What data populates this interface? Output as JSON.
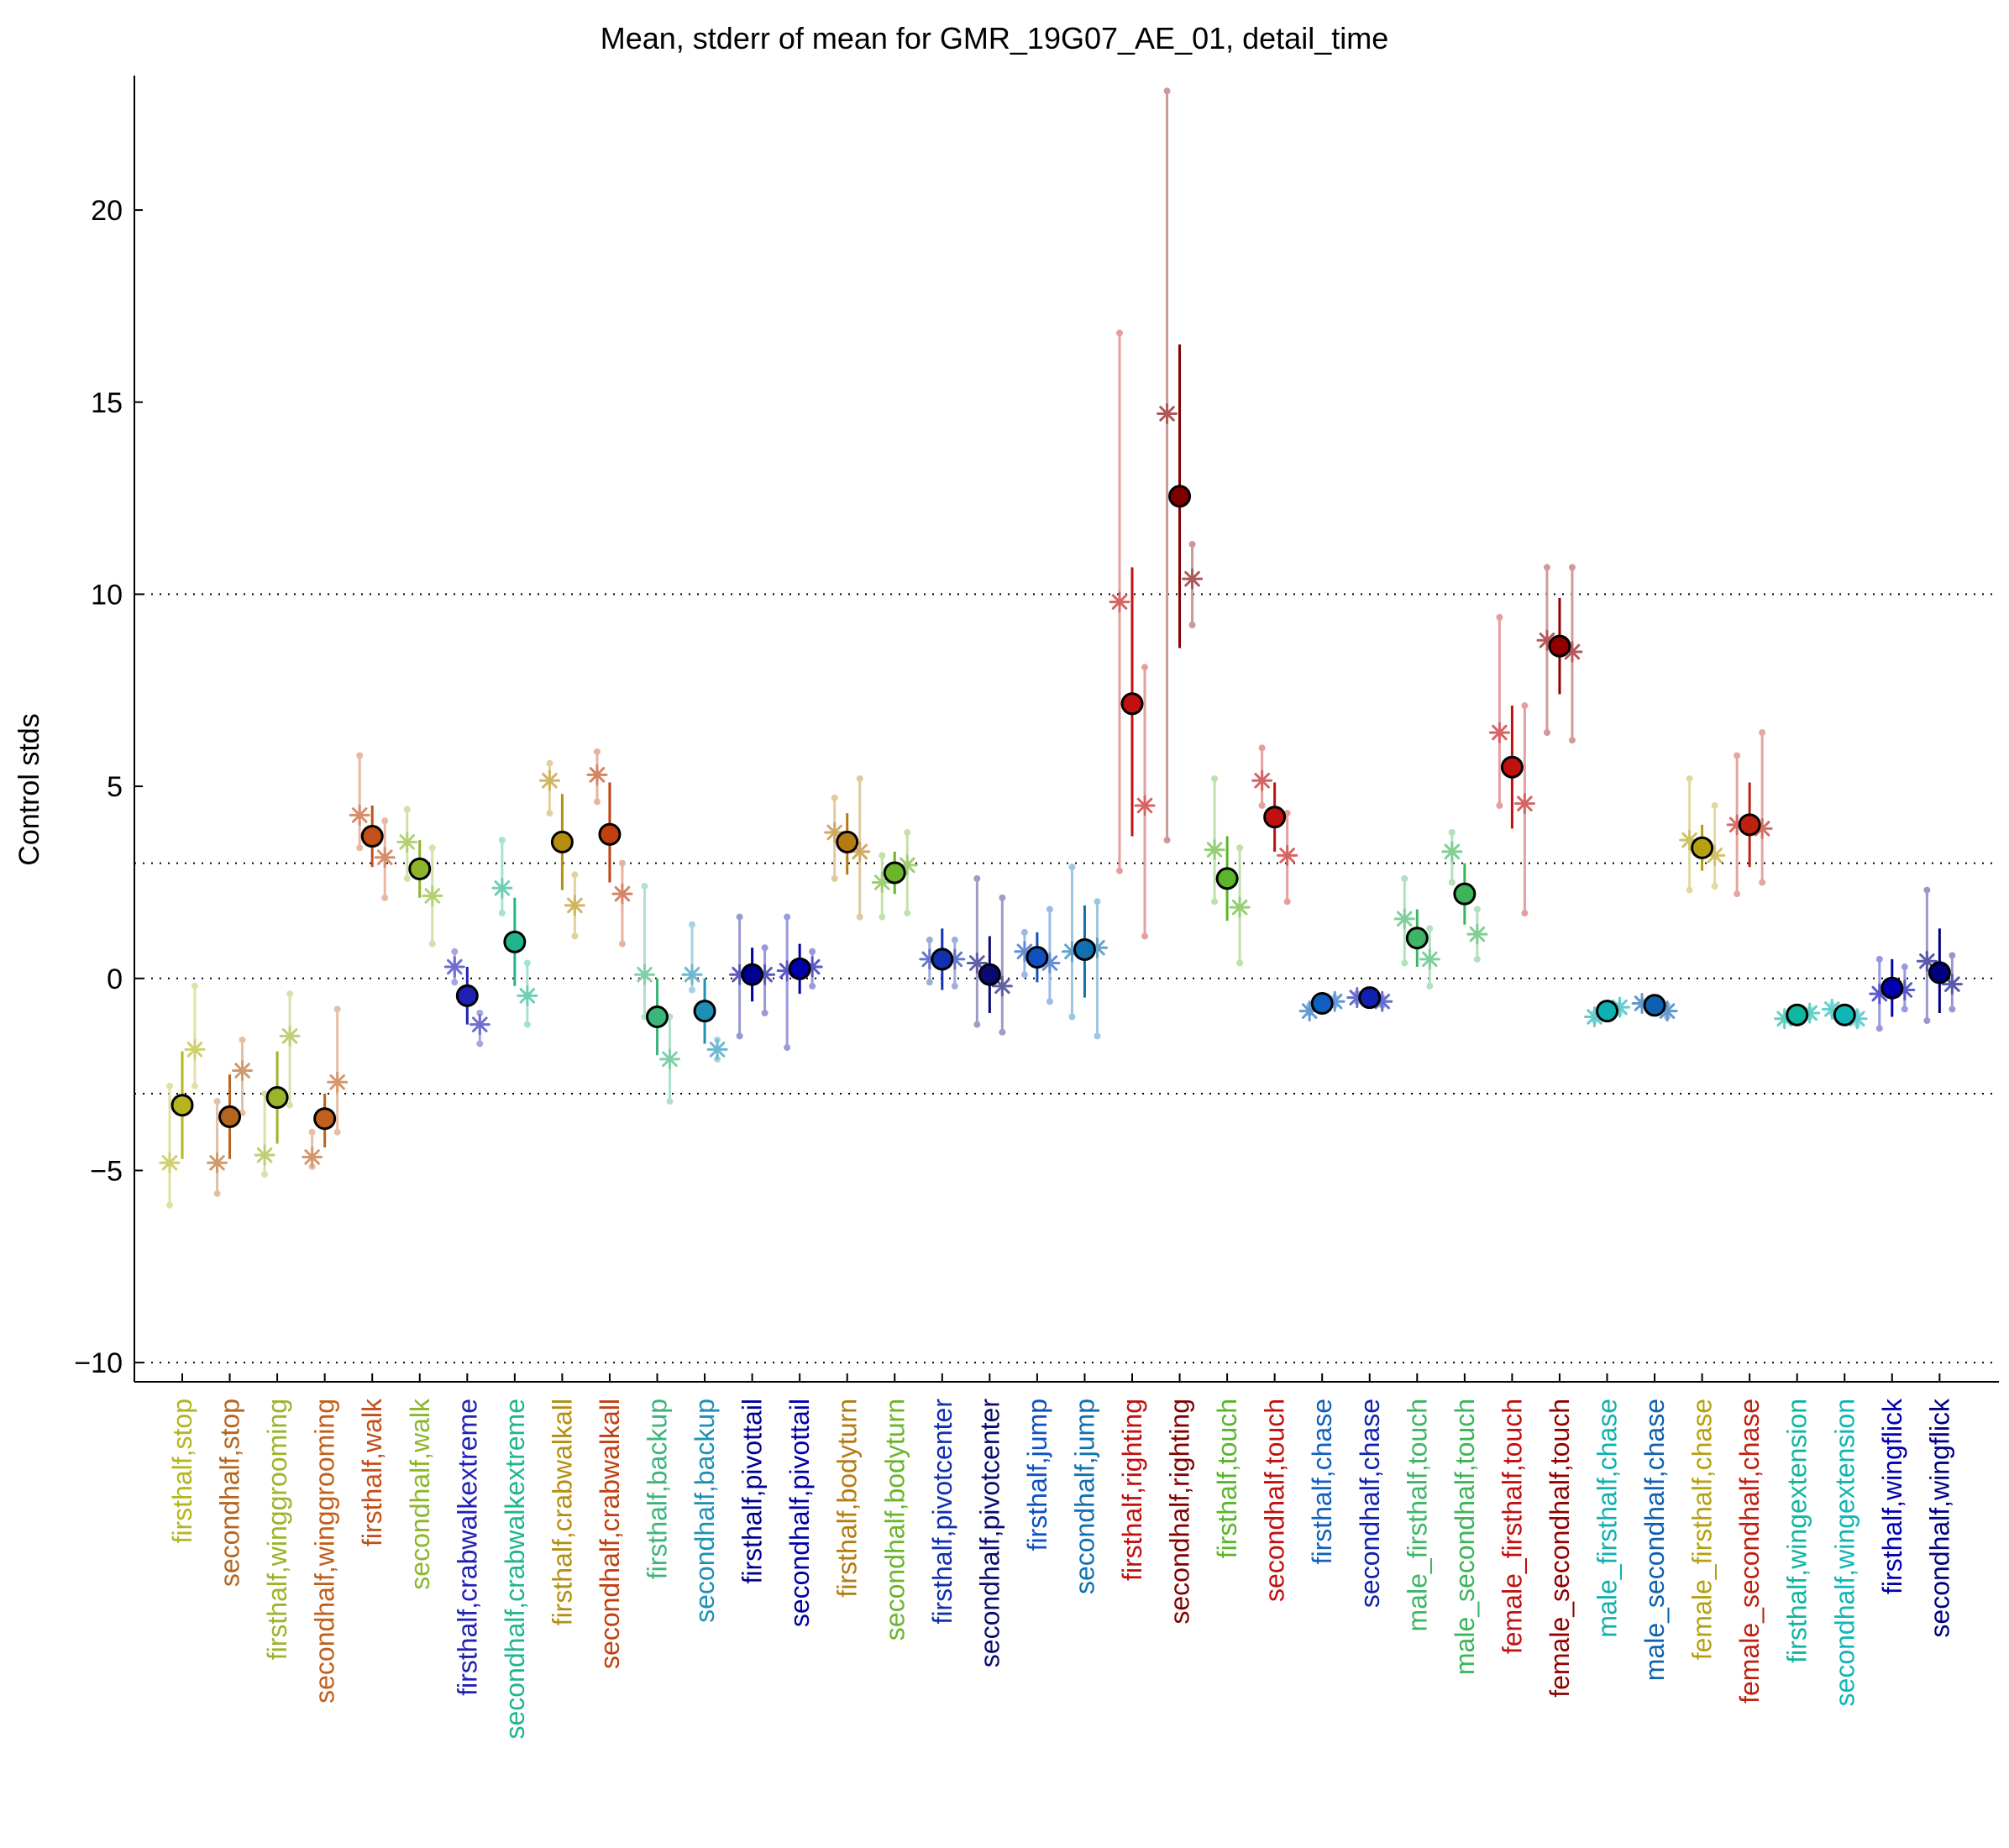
{
  "chart_data": {
    "type": "scatter",
    "title": "Mean, stderr of mean for GMR_19G07_AE_01, detail_time",
    "xlabel": "",
    "ylabel": "Control stds",
    "ylim": [
      -10.5,
      23.5
    ],
    "yticks": [
      -10,
      -5,
      0,
      5,
      10,
      15,
      20
    ],
    "ytick_labels": [
      "−10",
      "−5",
      "0",
      "5",
      "10",
      "15",
      "20"
    ],
    "reference_lines": [
      -10,
      -3,
      0,
      3,
      10
    ],
    "grid": false,
    "categories": [
      "firsthalf,stop",
      "secondhalf,stop",
      "firsthalf,winggrooming",
      "secondhalf,winggrooming",
      "firsthalf,walk",
      "secondhalf,walk",
      "firsthalf,crabwalkextreme",
      "secondhalf,crabwalkextreme",
      "firsthalf,crabwalkall",
      "secondhalf,crabwalkall",
      "firsthalf,backup",
      "secondhalf,backup",
      "firsthalf,pivottail",
      "secondhalf,pivottail",
      "firsthalf,bodyturn",
      "secondhalf,bodyturn",
      "firsthalf,pivotcenter",
      "secondhalf,pivotcenter",
      "firsthalf,jump",
      "secondhalf,jump",
      "firsthalf,righting",
      "secondhalf,righting",
      "firsthalf,touch",
      "secondhalf,touch",
      "firsthalf,chase",
      "secondhalf,chase",
      "male_firsthalf,touch",
      "male_secondhalf,touch",
      "female_firsthalf,touch",
      "female_secondhalf,touch",
      "male_firsthalf,chase",
      "male_secondhalf,chase",
      "female_firsthalf,chase",
      "female_secondhalf,chase",
      "firsthalf,wingextension",
      "secondhalf,wingextension",
      "firsthalf,wingflick",
      "secondhalf,wingflick"
    ],
    "colors": [
      "#b5b520",
      "#b5651d",
      "#9ab52a",
      "#c0601c",
      "#c2501a",
      "#8db52b",
      "#2020b5",
      "#20b58d",
      "#b58d10",
      "#c04010",
      "#3cb57a",
      "#1e90b5",
      "#000090",
      "#0000a8",
      "#b57a10",
      "#6ab52a",
      "#1030b0",
      "#0a0a70",
      "#1050c0",
      "#1070b0",
      "#c01010",
      "#800000",
      "#5ab52a",
      "#c01010",
      "#1060c0",
      "#1020b0",
      "#3cb566",
      "#3cb55a",
      "#c01010",
      "#900000",
      "#10b0b0",
      "#1060b0",
      "#b5a010",
      "#c02010",
      "#10b5a0",
      "#10b5b5",
      "#0000b0",
      "#000080"
    ],
    "series": [
      {
        "name": "",
        "kind": "mean",
        "values": [
          -3.3,
          -3.6,
          -3.1,
          -3.65,
          3.7,
          2.85,
          -0.45,
          0.95,
          3.55,
          3.75,
          -1.0,
          -0.85,
          0.1,
          0.25,
          3.55,
          2.75,
          0.5,
          0.1,
          0.55,
          0.75,
          7.15,
          12.55,
          2.6,
          4.2,
          -0.65,
          -0.5,
          1.05,
          2.2,
          5.5,
          8.65,
          -0.85,
          -0.7,
          3.4,
          4.0,
          -0.95,
          -0.95,
          -0.25,
          0.15
        ],
        "err_low": [
          -4.7,
          -4.7,
          -4.3,
          -4.4,
          2.9,
          2.1,
          -1.2,
          -0.2,
          2.3,
          2.5,
          -2.0,
          -1.7,
          -0.6,
          -0.4,
          2.7,
          2.2,
          -0.3,
          -0.9,
          -0.1,
          -0.5,
          3.7,
          8.6,
          1.5,
          3.3,
          -0.9,
          -0.7,
          0.3,
          1.4,
          3.9,
          7.4,
          -1.1,
          -0.9,
          2.8,
          2.9,
          -1.1,
          -1.1,
          -1.0,
          -0.9
        ],
        "err_high": [
          -1.9,
          -2.5,
          -1.9,
          -3.0,
          4.5,
          3.6,
          0.3,
          2.1,
          4.8,
          5.1,
          0.0,
          0.0,
          0.8,
          0.9,
          4.3,
          3.3,
          1.3,
          1.1,
          1.2,
          1.9,
          10.7,
          16.5,
          3.7,
          5.1,
          -0.4,
          -0.3,
          1.8,
          3.0,
          7.1,
          9.9,
          -0.6,
          -0.5,
          4.0,
          5.1,
          -0.8,
          -0.8,
          0.5,
          1.3
        ]
      },
      {
        "name": "",
        "kind": "left_star",
        "values": [
          -4.8,
          -4.8,
          -4.6,
          -4.65,
          4.25,
          3.55,
          0.3,
          2.35,
          5.15,
          5.3,
          0.1,
          0.1,
          0.1,
          0.2,
          3.8,
          2.5,
          0.5,
          0.4,
          0.7,
          0.7,
          9.8,
          14.7,
          3.35,
          5.15,
          -0.85,
          -0.5,
          1.55,
          3.3,
          6.4,
          8.8,
          -1.0,
          -0.65,
          3.6,
          4.0,
          -1.05,
          -0.8,
          -0.4,
          0.45
        ],
        "err_low": [
          -5.9,
          -5.6,
          -5.1,
          -4.9,
          3.4,
          2.6,
          -0.1,
          1.7,
          4.3,
          4.6,
          -1.0,
          -0.3,
          -1.5,
          -1.8,
          2.6,
          1.6,
          -0.1,
          -1.2,
          0.1,
          -1.0,
          2.8,
          3.6,
          2.0,
          4.5,
          -0.9,
          -0.6,
          0.4,
          2.5,
          4.5,
          6.4,
          -1.1,
          -0.7,
          2.3,
          2.2,
          -1.1,
          -0.9,
          -1.3,
          -1.1
        ],
        "err_high": [
          -2.8,
          -3.2,
          -3.0,
          -4.0,
          5.8,
          4.4,
          0.7,
          3.6,
          5.6,
          5.9,
          2.4,
          1.4,
          1.6,
          1.6,
          4.7,
          3.2,
          1.0,
          2.6,
          1.2,
          2.9,
          16.8,
          23.1,
          5.2,
          6.0,
          -0.7,
          -0.4,
          2.6,
          3.8,
          9.4,
          10.7,
          -0.9,
          -0.6,
          5.2,
          5.8,
          -1.0,
          -0.7,
          0.5,
          2.3
        ]
      },
      {
        "name": "",
        "kind": "right_star",
        "values": [
          -1.85,
          -2.4,
          -1.5,
          -2.7,
          3.15,
          2.15,
          -1.2,
          -0.45,
          1.9,
          2.2,
          -2.1,
          -1.85,
          0.1,
          0.3,
          3.3,
          2.95,
          0.5,
          -0.2,
          0.4,
          0.8,
          4.5,
          10.4,
          1.85,
          3.2,
          -0.6,
          -0.6,
          0.5,
          1.15,
          4.55,
          8.5,
          -0.75,
          -0.85,
          3.2,
          3.9,
          -0.9,
          -1.05,
          -0.3,
          -0.15
        ],
        "err_low": [
          -2.8,
          -3.5,
          -3.3,
          -4.0,
          2.1,
          0.9,
          -1.7,
          -1.2,
          1.1,
          0.9,
          -3.2,
          -2.1,
          -0.9,
          -0.2,
          1.6,
          1.7,
          -0.2,
          -1.4,
          -0.6,
          -1.5,
          1.1,
          9.2,
          0.4,
          2.0,
          -0.7,
          -0.7,
          -0.2,
          0.5,
          1.7,
          6.2,
          -0.9,
          -1.0,
          2.4,
          2.5,
          -1.0,
          -1.2,
          -0.8,
          -0.8
        ],
        "err_high": [
          -0.2,
          -1.6,
          -0.4,
          -0.8,
          4.1,
          3.4,
          -0.9,
          0.4,
          2.7,
          3.0,
          -1.0,
          -1.6,
          0.8,
          0.7,
          5.2,
          3.8,
          1.0,
          2.1,
          1.8,
          2.0,
          8.1,
          11.3,
          3.4,
          4.3,
          -0.5,
          -0.5,
          1.3,
          1.8,
          7.1,
          10.7,
          -0.7,
          -0.7,
          4.5,
          6.4,
          -0.8,
          -0.9,
          0.3,
          0.6
        ]
      }
    ]
  }
}
